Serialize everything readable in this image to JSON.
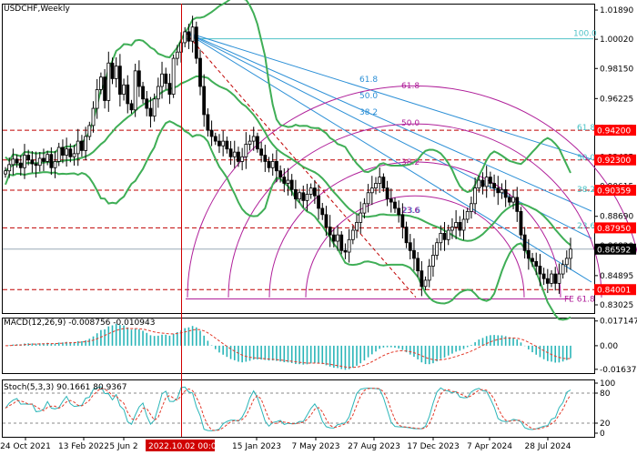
{
  "chart_data": {
    "type": "candlestick",
    "symbol_title": "USDCHF,Weekly",
    "price_axis": {
      "ylim": [
        0.825,
        1.023
      ],
      "ticks": [
        "1.01890",
        "1.00020",
        "0.98150",
        "0.96225",
        "0.94355",
        "0.92485",
        "0.90615",
        "0.88690",
        "0.86820",
        "0.84895",
        "0.83025"
      ]
    },
    "x_axis": {
      "labels": [
        "24 Oct 2021",
        "13 Feb 2022",
        "5 Jun 2",
        "15 Jan 2023",
        "7 May 2023",
        "27 Aug 2023",
        "17 Dec 2023",
        "7 Apr 2024",
        "28 Jul 2024"
      ],
      "cursor_label": "2022.10.02 00:00"
    },
    "price_levels": [
      {
        "label": "0.94200",
        "value": 0.942,
        "color": "#c00000"
      },
      {
        "label": "0.92300",
        "value": 0.923,
        "color": "#c00000"
      },
      {
        "label": "0.90359",
        "value": 0.9036,
        "color": "#c00000"
      },
      {
        "label": "0.87950",
        "value": 0.8795,
        "color": "#c00000"
      },
      {
        "label": "0.84001",
        "value": 0.84,
        "color": "#c00000"
      },
      {
        "label": "0.86592",
        "value": 0.8659,
        "color": "#000000"
      }
    ],
    "fibo_labels": {
      "fan": [
        "100.0",
        "61.8",
        "50.0",
        "38.2",
        "23.6"
      ],
      "fan_right": [
        "61.8",
        "50.0",
        "38.2",
        "23.6"
      ],
      "arcs": [
        "61.8",
        "50.0",
        "38.2",
        "23.6"
      ],
      "expansion": "FE 61.8"
    },
    "close_series": [
      0.916,
      0.92,
      0.9235,
      0.921,
      0.918,
      0.926,
      0.923,
      0.9205,
      0.9195,
      0.924,
      0.922,
      0.9265,
      0.918,
      0.922,
      0.931,
      0.926,
      0.93,
      0.925,
      0.927,
      0.935,
      0.929,
      0.938,
      0.945,
      0.956,
      0.968,
      0.976,
      0.961,
      0.985,
      0.975,
      0.983,
      0.965,
      0.971,
      0.959,
      0.955,
      0.98,
      0.97,
      0.962,
      0.956,
      0.951,
      0.962,
      0.97,
      0.978,
      0.972,
      0.965,
      0.988,
      0.992,
      0.998,
      1.005,
      0.999,
      1.008,
      0.988,
      0.97,
      0.952,
      0.942,
      0.938,
      0.935,
      0.932,
      0.935,
      0.93,
      0.925,
      0.928,
      0.922,
      0.925,
      0.933,
      0.935,
      0.938,
      0.93,
      0.926,
      0.922,
      0.918,
      0.922,
      0.916,
      0.912,
      0.908,
      0.91,
      0.904,
      0.898,
      0.902,
      0.897,
      0.901,
      0.905,
      0.9,
      0.892,
      0.888,
      0.88,
      0.875,
      0.871,
      0.875,
      0.865,
      0.864,
      0.872,
      0.878,
      0.883,
      0.889,
      0.895,
      0.902,
      0.905,
      0.908,
      0.912,
      0.905,
      0.898,
      0.896,
      0.892,
      0.888,
      0.88,
      0.87,
      0.865,
      0.86,
      0.852,
      0.842,
      0.846,
      0.855,
      0.862,
      0.87,
      0.876,
      0.872,
      0.878,
      0.88,
      0.883,
      0.878,
      0.885,
      0.89,
      0.895,
      0.905,
      0.91,
      0.906,
      0.912,
      0.908,
      0.905,
      0.902,
      0.904,
      0.899,
      0.896,
      0.899,
      0.89,
      0.875,
      0.865,
      0.86,
      0.858,
      0.855,
      0.85,
      0.847,
      0.844,
      0.85,
      0.844,
      0.85,
      0.856,
      0.86,
      0.8659
    ],
    "indicators": [
      {
        "label": "MACD(12,26,9) -0.008756 -0.010943",
        "ticks": [
          "0.017147",
          "0.00",
          "-0.016377"
        ],
        "ylim": [
          -0.019,
          0.0195
        ],
        "note": "histogram teal, signal red dashed"
      },
      {
        "label": "Stoch(5,3,3) 90.1661 80.9367",
        "ticks": [
          "100",
          "80",
          "20",
          "0"
        ],
        "ylim": [
          0,
          100
        ],
        "levels": [
          80,
          20
        ]
      }
    ],
    "colors": {
      "candle": "#000000",
      "bollinger": "#3fae56",
      "fan": "#2b8fd6",
      "arc": "#b0209a",
      "level": "#c00000",
      "level_badge": "#ff0000",
      "hist": "#2ab5b8",
      "signal": "#e33a2a",
      "cursor": "#d00000"
    }
  }
}
